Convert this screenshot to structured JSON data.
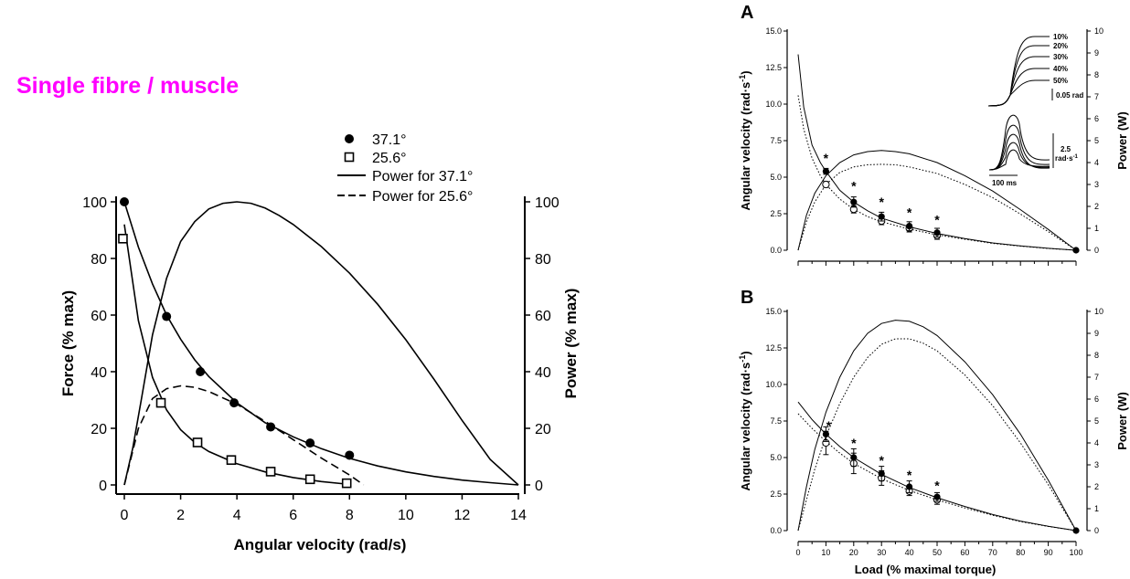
{
  "heading": "Single fibre / muscle",
  "chart_data": [
    {
      "type": "line",
      "id": "left",
      "xlabel": "Angular velocity (rad/s)",
      "ylabel": "Force (% max)",
      "y2label": "Power (% max)",
      "xlim": [
        0,
        14
      ],
      "ylim": [
        0,
        100
      ],
      "y2lim": [
        0,
        100
      ],
      "xticks": [
        "0",
        "2",
        "4",
        "6",
        "8",
        "10",
        "12",
        "14"
      ],
      "yticks": [
        "0",
        "20",
        "40",
        "60",
        "80",
        "100"
      ],
      "y2ticks": [
        "0",
        "20",
        "40",
        "60",
        "80",
        "100"
      ],
      "legend_position": "top-center",
      "series": [
        {
          "name": "37.1°",
          "marker": "filled-circle",
          "x": [
            0,
            1.5,
            2.7,
            3.9,
            5.2,
            6.6,
            8.0
          ],
          "y": [
            100,
            59.5,
            40,
            29,
            20.5,
            14.8,
            10.5
          ]
        },
        {
          "name": "25.6°",
          "marker": "open-square",
          "x": [
            -0.05,
            1.3,
            2.6,
            3.8,
            5.2,
            6.6,
            7.9
          ],
          "y": [
            87,
            29,
            15,
            8.8,
            4.7,
            2,
            0.6
          ]
        },
        {
          "name": "Power for 37.1°",
          "style": "solid",
          "x": [
            0,
            0.3,
            0.6,
            1.0,
            1.5,
            2.0,
            2.5,
            3.0,
            3.5,
            4.0,
            4.5,
            5.0,
            5.5,
            6.0,
            7.0,
            8.0,
            9.0,
            10.0,
            11.0,
            12.0,
            13.0,
            14.0
          ],
          "y": [
            0,
            13,
            30,
            53,
            73,
            86,
            93,
            97.5,
            99.5,
            100,
            99.5,
            97.8,
            95.2,
            92,
            84.2,
            74.8,
            63.8,
            51.3,
            37.4,
            22.8,
            9,
            0
          ]
        },
        {
          "name": "Power for 25.6°",
          "style": "dashed",
          "x": [
            0,
            0.5,
            1.0,
            1.5,
            2.0,
            2.5,
            3.0,
            4.0,
            5.0,
            6.0,
            7.0,
            8.0,
            8.5
          ],
          "y": [
            0,
            20,
            30.5,
            34,
            35,
            34.5,
            33,
            28.5,
            22.5,
            16,
            9.5,
            3.5,
            0
          ]
        },
        {
          "name": "fit-force-37.1",
          "style": "solid",
          "x": [
            0,
            0.5,
            1.0,
            1.5,
            2.0,
            2.5,
            3.0,
            4.0,
            5.0,
            6.0,
            7.0,
            8.0,
            9.0,
            10.0,
            11.0,
            12.0,
            13.0,
            14.0
          ],
          "y": [
            100,
            84,
            71,
            60,
            51.5,
            44.2,
            38.3,
            29,
            22,
            17,
            12.8,
            9.4,
            6.7,
            4.6,
            3,
            1.7,
            0.8,
            0
          ]
        },
        {
          "name": "fit-force-25.6",
          "style": "solid",
          "x": [
            0,
            0.5,
            1.0,
            1.5,
            2.0,
            2.5,
            3.0,
            4.0,
            5.0,
            6.0,
            7.0,
            8.0
          ],
          "y": [
            92,
            58,
            38,
            26.5,
            19.5,
            15,
            11.8,
            7.5,
            4.6,
            2.6,
            1.2,
            0.2
          ]
        }
      ]
    },
    {
      "type": "line",
      "id": "A",
      "panel_label": "A",
      "ylabel": "Angular velocity (rad·s",
      "ylabel_sup": "-1",
      "ylabel_close": ")",
      "y2label": "Power (W)",
      "xlim": [
        0,
        100
      ],
      "ylim": [
        0,
        15
      ],
      "y2lim": [
        0,
        10
      ],
      "yticks": [
        "0.0",
        "2.5",
        "5.0",
        "7.5",
        "10.0",
        "12.5",
        "15.0"
      ],
      "y2ticks": [
        "0",
        "1",
        "2",
        "3",
        "4",
        "5",
        "6",
        "7",
        "8",
        "9",
        "10"
      ],
      "asterisk_x": [
        10,
        20,
        30,
        40,
        50
      ],
      "asterisk_y": [
        6.3,
        4.4,
        3.3,
        2.6,
        2.1
      ],
      "series": [
        {
          "name": "filled",
          "marker": "filled-circle",
          "x": [
            10,
            20,
            30,
            40,
            50,
            100
          ],
          "y": [
            5.4,
            3.3,
            2.3,
            1.65,
            1.2,
            0
          ],
          "err": [
            0.2,
            0.35,
            0.3,
            0.3,
            0.3,
            0
          ]
        },
        {
          "name": "open",
          "marker": "open-circle",
          "x": [
            10,
            20,
            30,
            40,
            50
          ],
          "y": [
            4.5,
            2.8,
            2.0,
            1.5,
            1.0
          ],
          "err": [
            0.2,
            0.25,
            0.25,
            0.25,
            0.25
          ]
        },
        {
          "name": "velocity-solid",
          "style": "solid",
          "x": [
            0,
            2,
            5,
            8,
            10,
            15,
            20,
            25,
            30,
            40,
            50,
            60,
            70,
            80,
            90,
            100
          ],
          "y": [
            13.4,
            9.8,
            7.2,
            6.0,
            5.4,
            4.1,
            3.3,
            2.7,
            2.2,
            1.6,
            1.15,
            0.8,
            0.5,
            0.3,
            0.13,
            0
          ]
        },
        {
          "name": "velocity-dotted",
          "style": "dotted",
          "x": [
            0,
            2,
            5,
            8,
            10,
            15,
            20,
            25,
            30,
            40,
            50,
            60,
            70,
            80,
            90,
            100
          ],
          "y": [
            10.6,
            8.3,
            6.3,
            5.1,
            4.5,
            3.5,
            2.8,
            2.3,
            1.95,
            1.45,
            1.05,
            0.75,
            0.47,
            0.28,
            0.12,
            0
          ]
        },
        {
          "name": "power-solid",
          "style": "solid",
          "axis": "y2",
          "x": [
            0,
            3,
            6,
            10,
            15,
            20,
            25,
            30,
            35,
            40,
            50,
            60,
            70,
            80,
            90,
            100
          ],
          "y": [
            0,
            1.6,
            2.6,
            3.4,
            4.0,
            4.35,
            4.5,
            4.55,
            4.5,
            4.4,
            4.0,
            3.4,
            2.7,
            1.85,
            0.95,
            0
          ]
        },
        {
          "name": "power-dotted",
          "style": "dotted",
          "axis": "y2",
          "x": [
            0,
            3,
            6,
            10,
            15,
            20,
            25,
            30,
            35,
            40,
            50,
            60,
            70,
            80,
            90,
            100
          ],
          "y": [
            0,
            1.3,
            2.2,
            3.0,
            3.55,
            3.8,
            3.9,
            3.92,
            3.9,
            3.8,
            3.5,
            3.0,
            2.4,
            1.65,
            0.85,
            0
          ]
        }
      ],
      "inset": {
        "labels": [
          "10%",
          "20%",
          "30%",
          "40%",
          "50%"
        ],
        "scale_position": "0.05 rad",
        "scale_velocity_1": "2.5",
        "scale_velocity_2": "rad·s",
        "scale_velocity_sup": "-1",
        "scale_time": "100 ms"
      }
    },
    {
      "type": "line",
      "id": "B",
      "panel_label": "B",
      "xlabel": "Load (% maximal torque)",
      "ylabel": "Angular velocity (rad·s",
      "ylabel_sup": "-1",
      "ylabel_close": ")",
      "y2label": "Power (W)",
      "xlim": [
        0,
        100
      ],
      "ylim": [
        0,
        15
      ],
      "y2lim": [
        0,
        10
      ],
      "xticks": [
        "0",
        "10",
        "20",
        "30",
        "40",
        "50",
        "60",
        "70",
        "80",
        "90",
        "100"
      ],
      "yticks": [
        "0.0",
        "2.5",
        "5.0",
        "7.5",
        "10.0",
        "12.5",
        "15.0"
      ],
      "y2ticks": [
        "0",
        "1",
        "2",
        "3",
        "4",
        "5",
        "6",
        "7",
        "8",
        "9",
        "10"
      ],
      "asterisk_x": [
        11,
        20,
        30,
        40,
        50
      ],
      "asterisk_y": [
        7.2,
        6.0,
        4.8,
        3.8,
        3.1
      ],
      "series": [
        {
          "name": "filled",
          "marker": "filled-circle",
          "x": [
            10,
            20,
            30,
            40,
            50,
            100
          ],
          "y": [
            6.6,
            5.0,
            3.9,
            3.0,
            2.3,
            0
          ],
          "err": [
            0.5,
            0.6,
            0.5,
            0.4,
            0.3,
            0
          ]
        },
        {
          "name": "open",
          "marker": "open-circle",
          "x": [
            10,
            20,
            30,
            40,
            50
          ],
          "y": [
            6.0,
            4.6,
            3.6,
            2.7,
            2.1
          ],
          "err": [
            0.8,
            0.7,
            0.5,
            0.3,
            0.3
          ]
        },
        {
          "name": "velocity-solid",
          "style": "solid",
          "x": [
            0,
            5,
            10,
            15,
            20,
            30,
            40,
            50,
            60,
            70,
            80,
            90,
            100
          ],
          "y": [
            8.8,
            7.6,
            6.6,
            5.75,
            5.0,
            3.85,
            2.95,
            2.25,
            1.65,
            1.1,
            0.65,
            0.3,
            0
          ]
        },
        {
          "name": "velocity-dotted",
          "style": "dotted",
          "x": [
            0,
            5,
            10,
            15,
            20,
            30,
            40,
            50,
            60,
            70,
            80,
            90,
            100
          ],
          "y": [
            8.0,
            7.0,
            6.1,
            5.3,
            4.6,
            3.55,
            2.75,
            2.1,
            1.55,
            1.05,
            0.62,
            0.28,
            0
          ]
        },
        {
          "name": "power-solid",
          "style": "solid",
          "axis": "y2",
          "x": [
            0,
            3,
            6,
            10,
            15,
            20,
            25,
            30,
            35,
            40,
            45,
            50,
            60,
            70,
            80,
            90,
            100
          ],
          "y": [
            0,
            2.0,
            3.7,
            5.4,
            7.0,
            8.2,
            9.0,
            9.45,
            9.6,
            9.55,
            9.3,
            8.9,
            7.7,
            6.2,
            4.4,
            2.3,
            0
          ]
        },
        {
          "name": "power-dotted",
          "style": "dotted",
          "axis": "y2",
          "x": [
            0,
            3,
            6,
            10,
            15,
            20,
            25,
            30,
            35,
            40,
            45,
            50,
            60,
            70,
            80,
            90,
            100
          ],
          "y": [
            0,
            1.4,
            2.8,
            4.3,
            5.8,
            7.0,
            7.9,
            8.5,
            8.75,
            8.75,
            8.55,
            8.2,
            7.1,
            5.7,
            4.0,
            2.1,
            0
          ]
        }
      ]
    }
  ]
}
